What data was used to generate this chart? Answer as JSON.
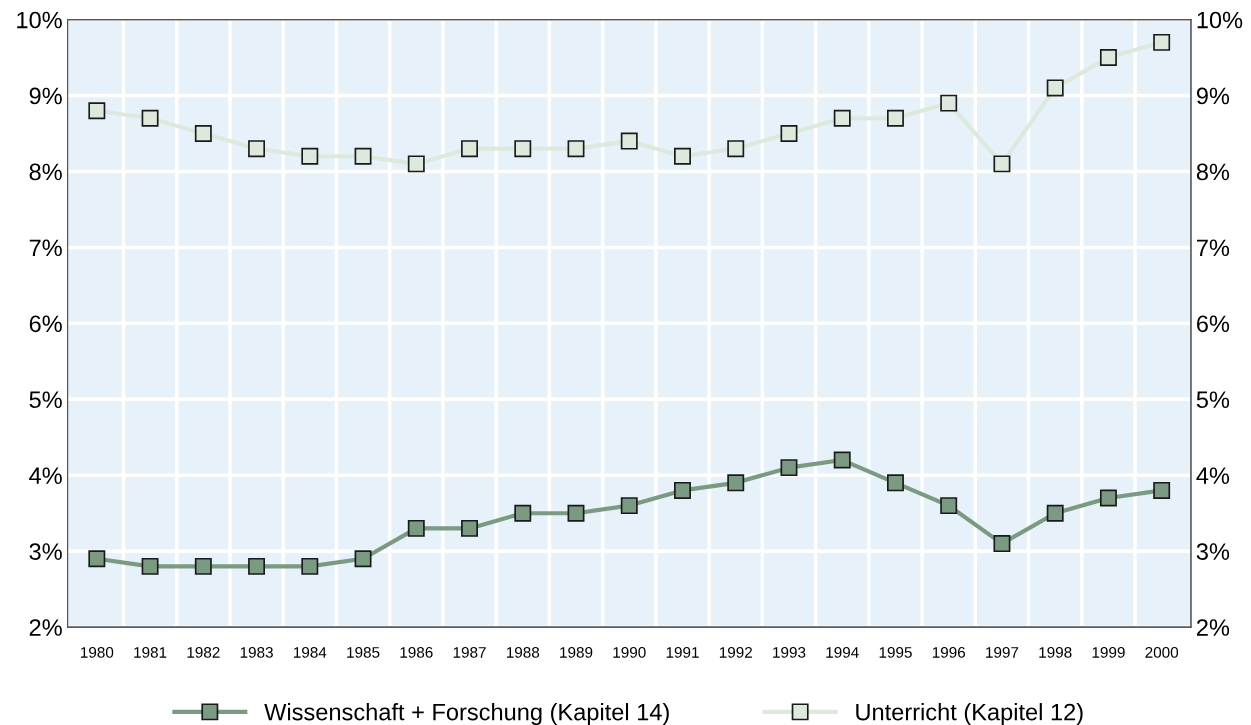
{
  "chart_data": {
    "type": "line",
    "categories": [
      "1980",
      "1981",
      "1982",
      "1983",
      "1984",
      "1985",
      "1986",
      "1987",
      "1988",
      "1989",
      "1990",
      "1991",
      "1992",
      "1993",
      "1994",
      "1995",
      "1996",
      "1997",
      "1998",
      "1999",
      "2000"
    ],
    "series": [
      {
        "name": "Wissenschaft + Forschung (Kapitel 14)",
        "color": "#7b9a82",
        "values": [
          2.9,
          2.8,
          2.8,
          2.8,
          2.8,
          2.9,
          3.3,
          3.3,
          3.5,
          3.5,
          3.6,
          3.8,
          3.9,
          4.1,
          4.2,
          3.9,
          3.6,
          3.1,
          3.5,
          3.7,
          3.8
        ]
      },
      {
        "name": "Unterricht (Kapitel 12)",
        "color": "#dde9dd",
        "values": [
          8.8,
          8.7,
          8.5,
          8.3,
          8.2,
          8.2,
          8.1,
          8.3,
          8.3,
          8.3,
          8.4,
          8.2,
          8.3,
          8.5,
          8.7,
          8.7,
          8.9,
          8.1,
          9.1,
          9.5,
          9.7
        ]
      }
    ],
    "ylim": [
      2,
      10
    ],
    "yticks": [
      {
        "value": 2,
        "label": "2%"
      },
      {
        "value": 3,
        "label": "3%"
      },
      {
        "value": 4,
        "label": "4%"
      },
      {
        "value": 5,
        "label": "5%"
      },
      {
        "value": 6,
        "label": "6%"
      },
      {
        "value": 7,
        "label": "7%"
      },
      {
        "value": 8,
        "label": "8%"
      },
      {
        "value": 9,
        "label": "9%"
      },
      {
        "value": 10,
        "label": "10%"
      }
    ],
    "y2lim": [
      2,
      10
    ],
    "y2ticks": [
      {
        "value": 2,
        "label": "2%"
      },
      {
        "value": 3,
        "label": "3%"
      },
      {
        "value": 4,
        "label": "4%"
      },
      {
        "value": 5,
        "label": "5%"
      },
      {
        "value": 6,
        "label": "6%"
      },
      {
        "value": 7,
        "label": "7%"
      },
      {
        "value": 8,
        "label": "8%"
      },
      {
        "value": 9,
        "label": "9%"
      },
      {
        "value": 10,
        "label": "10%"
      }
    ],
    "grid": true,
    "legend": "bottom",
    "marker": "square",
    "line_style": "solid"
  }
}
